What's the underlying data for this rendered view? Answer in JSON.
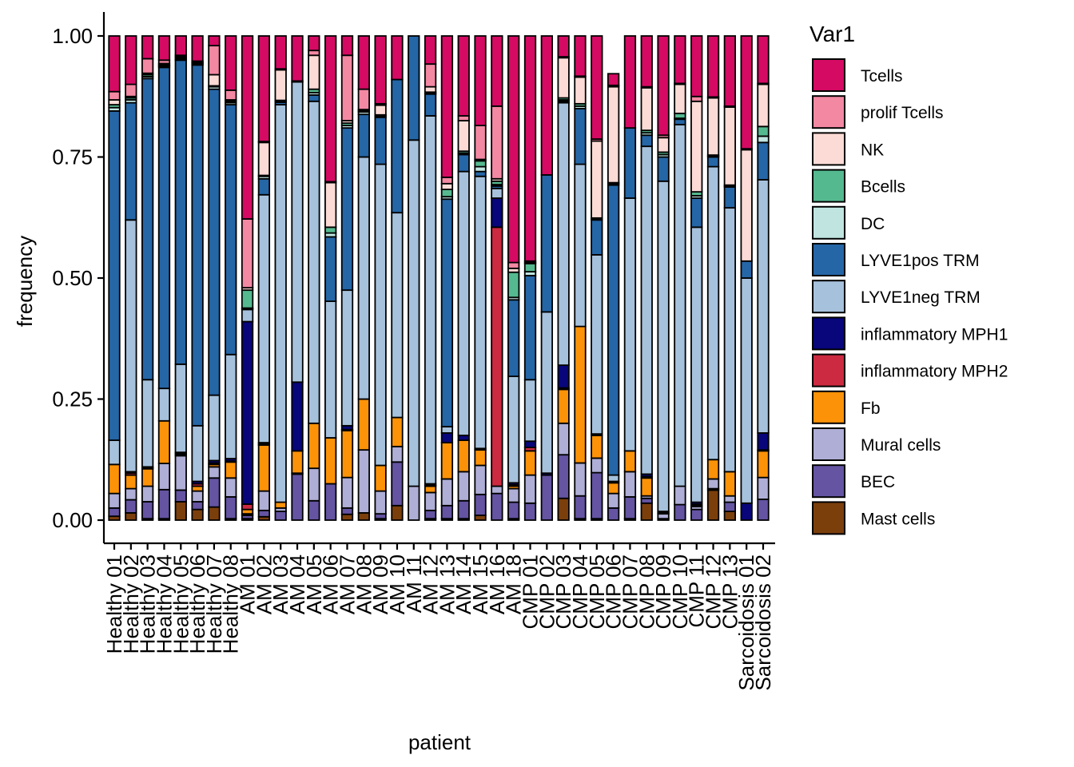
{
  "chart_data": {
    "type": "bar",
    "stacked": true,
    "title": "",
    "xlabel": "patient",
    "ylabel": "frequency",
    "ylim": [
      0,
      1
    ],
    "yticks": [
      "0.00",
      "0.25",
      "0.50",
      "0.75",
      "1.00"
    ],
    "legend": {
      "title": "Var1",
      "placement": "right",
      "entries": [
        "Tcells",
        "prolif Tcells",
        "NK",
        "Bcells",
        "DC",
        "LYVE1pos TRM",
        "LYVE1neg TRM",
        "inflammatory MPH1",
        "inflammatory MPH2",
        "Fb",
        "Mural cells",
        "BEC",
        "Mast cells"
      ]
    },
    "colors": {
      "Mast cells": "#7b3f0c",
      "BEC": "#6454a2",
      "Mural cells": "#aeaed6",
      "Fb": "#fb9208",
      "inflammatory MPH2": "#cb2a40",
      "inflammatory MPH1": "#08067a",
      "LYVE1neg TRM": "#a6c1dc",
      "LYVE1pos TRM": "#2566a6",
      "DC": "#c0e5e1",
      "Bcells": "#55b990",
      "NK": "#fcdbd6",
      "prolif Tcells": "#f388a3",
      "Tcells": "#d50a63"
    },
    "stack_order": [
      "Mast cells",
      "BEC",
      "Mural cells",
      "Fb",
      "inflammatory MPH2",
      "inflammatory MPH1",
      "LYVE1neg TRM",
      "LYVE1pos TRM",
      "DC",
      "Bcells",
      "NK",
      "prolif Tcells",
      "Tcells"
    ],
    "categories": [
      "Healthy 01",
      "Healthy 02",
      "Healthy 03",
      "Healthy 04",
      "Healthy 05",
      "Healthy 06",
      "Healthy 07",
      "Healthy 08",
      "AM 01",
      "AM 02",
      "AM 03",
      "AM 04",
      "AM 05",
      "AM 06",
      "AM 07",
      "AM 08",
      "AM 09",
      "AM 10",
      "AM 11",
      "AM 12",
      "AM 13",
      "AM 14",
      "AM 15",
      "AM 16",
      "AM 18",
      "CMP 01",
      "CMP 02",
      "CMP 03",
      "CMP 04",
      "CMP 05",
      "CMP 06",
      "CMP 07",
      "CMP 08",
      "CMP 09",
      "CMP 10",
      "CMP 11",
      "CMP 12",
      "CMP 13",
      "Sarcoidosis 01",
      "Sarcoidosis 02"
    ],
    "cumulative_tops": [
      {
        "Mast cells": 0.008,
        "BEC": 0.025,
        "Mural cells": 0.055,
        "Fb": 0.115,
        "inflammatory MPH2": 0.115,
        "inflammatory MPH1": 0.115,
        "LYVE1neg TRM": 0.165,
        "LYVE1pos TRM": 0.845,
        "DC": 0.852,
        "Bcells": 0.858,
        "NK": 0.868,
        "prolif Tcells": 0.885,
        "Tcells": 1.0
      },
      {
        "Mast cells": 0.015,
        "BEC": 0.042,
        "Mural cells": 0.065,
        "Fb": 0.093,
        "inflammatory MPH2": 0.097,
        "inflammatory MPH1": 0.1,
        "LYVE1neg TRM": 0.62,
        "LYVE1pos TRM": 0.862,
        "DC": 0.868,
        "Bcells": 0.872,
        "NK": 0.875,
        "prolif Tcells": 0.9,
        "Tcells": 1.0
      },
      {
        "Mast cells": 0.003,
        "BEC": 0.038,
        "Mural cells": 0.07,
        "Fb": 0.106,
        "inflammatory MPH2": 0.108,
        "inflammatory MPH1": 0.11,
        "LYVE1neg TRM": 0.29,
        "LYVE1pos TRM": 0.912,
        "DC": 0.916,
        "Bcells": 0.92,
        "NK": 0.923,
        "prolif Tcells": 0.953,
        "Tcells": 1.0
      },
      {
        "Mast cells": 0.003,
        "BEC": 0.063,
        "Mural cells": 0.117,
        "Fb": 0.205,
        "inflammatory MPH2": 0.205,
        "inflammatory MPH1": 0.205,
        "LYVE1neg TRM": 0.272,
        "LYVE1pos TRM": 0.935,
        "DC": 0.938,
        "Bcells": 0.94,
        "NK": 0.943,
        "prolif Tcells": 0.95,
        "Tcells": 1.0
      },
      {
        "Mast cells": 0.038,
        "BEC": 0.062,
        "Mural cells": 0.133,
        "Fb": 0.136,
        "inflammatory MPH2": 0.138,
        "inflammatory MPH1": 0.14,
        "LYVE1neg TRM": 0.322,
        "LYVE1pos TRM": 0.95,
        "DC": 0.952,
        "Bcells": 0.955,
        "NK": 0.957,
        "prolif Tcells": 0.96,
        "Tcells": 1.0
      },
      {
        "Mast cells": 0.022,
        "BEC": 0.038,
        "Mural cells": 0.06,
        "Fb": 0.07,
        "inflammatory MPH2": 0.075,
        "inflammatory MPH1": 0.08,
        "LYVE1neg TRM": 0.195,
        "LYVE1pos TRM": 0.94,
        "DC": 0.942,
        "Bcells": 0.944,
        "NK": 0.946,
        "prolif Tcells": 0.948,
        "Tcells": 1.0
      },
      {
        "Mast cells": 0.027,
        "BEC": 0.087,
        "Mural cells": 0.11,
        "Fb": 0.115,
        "inflammatory MPH2": 0.118,
        "inflammatory MPH1": 0.123,
        "LYVE1neg TRM": 0.258,
        "LYVE1pos TRM": 0.89,
        "DC": 0.895,
        "Bcells": 0.897,
        "NK": 0.92,
        "prolif Tcells": 0.98,
        "Tcells": 1.0
      },
      {
        "Mast cells": 0.003,
        "BEC": 0.048,
        "Mural cells": 0.087,
        "Fb": 0.12,
        "inflammatory MPH2": 0.122,
        "inflammatory MPH1": 0.127,
        "LYVE1neg TRM": 0.342,
        "LYVE1pos TRM": 0.858,
        "DC": 0.862,
        "Bcells": 0.865,
        "NK": 0.868,
        "prolif Tcells": 0.888,
        "Tcells": 1.0
      },
      {
        "Mast cells": 0.003,
        "BEC": 0.01,
        "Mural cells": 0.013,
        "Fb": 0.022,
        "inflammatory MPH2": 0.033,
        "inflammatory MPH1": 0.41,
        "LYVE1neg TRM": 0.435,
        "LYVE1pos TRM": 0.437,
        "DC": 0.438,
        "Bcells": 0.475,
        "NK": 0.48,
        "prolif Tcells": 0.622,
        "Tcells": 1.0
      },
      {
        "Mast cells": 0.007,
        "BEC": 0.02,
        "Mural cells": 0.06,
        "Fb": 0.155,
        "inflammatory MPH2": 0.157,
        "inflammatory MPH1": 0.16,
        "LYVE1neg TRM": 0.672,
        "LYVE1pos TRM": 0.705,
        "DC": 0.71,
        "Bcells": 0.712,
        "NK": 0.78,
        "prolif Tcells": 0.782,
        "Tcells": 1.0
      },
      {
        "Mast cells": 0.0,
        "BEC": 0.018,
        "Mural cells": 0.025,
        "Fb": 0.037,
        "inflammatory MPH2": 0.037,
        "inflammatory MPH1": 0.037,
        "LYVE1neg TRM": 0.858,
        "LYVE1pos TRM": 0.863,
        "DC": 0.865,
        "Bcells": 0.867,
        "NK": 0.93,
        "prolif Tcells": 0.932,
        "Tcells": 1.0
      },
      {
        "Mast cells": 0.0,
        "BEC": 0.095,
        "Mural cells": 0.097,
        "Fb": 0.143,
        "inflammatory MPH2": 0.143,
        "inflammatory MPH1": 0.285,
        "LYVE1neg TRM": 0.905,
        "LYVE1pos TRM": 0.905,
        "DC": 0.907,
        "Bcells": 0.907,
        "NK": 0.907,
        "prolif Tcells": 0.907,
        "Tcells": 1.0
      },
      {
        "Mast cells": 0.0,
        "BEC": 0.04,
        "Mural cells": 0.107,
        "Fb": 0.2,
        "inflammatory MPH2": 0.2,
        "inflammatory MPH1": 0.2,
        "LYVE1neg TRM": 0.865,
        "LYVE1pos TRM": 0.878,
        "DC": 0.883,
        "Bcells": 0.89,
        "NK": 0.96,
        "prolif Tcells": 0.97,
        "Tcells": 1.0
      },
      {
        "Mast cells": 0.0,
        "BEC": 0.075,
        "Mural cells": 0.075,
        "Fb": 0.17,
        "inflammatory MPH2": 0.17,
        "inflammatory MPH1": 0.17,
        "LYVE1neg TRM": 0.452,
        "LYVE1pos TRM": 0.585,
        "DC": 0.593,
        "Bcells": 0.605,
        "NK": 0.697,
        "prolif Tcells": 0.699,
        "Tcells": 1.0
      },
      {
        "Mast cells": 0.012,
        "BEC": 0.025,
        "Mural cells": 0.088,
        "Fb": 0.185,
        "inflammatory MPH2": 0.187,
        "inflammatory MPH1": 0.195,
        "LYVE1neg TRM": 0.475,
        "LYVE1pos TRM": 0.81,
        "DC": 0.815,
        "Bcells": 0.82,
        "NK": 0.825,
        "prolif Tcells": 0.96,
        "Tcells": 1.0
      },
      {
        "Mast cells": 0.015,
        "BEC": 0.015,
        "Mural cells": 0.145,
        "Fb": 0.25,
        "inflammatory MPH2": 0.25,
        "inflammatory MPH1": 0.25,
        "LYVE1neg TRM": 0.75,
        "LYVE1pos TRM": 0.838,
        "DC": 0.843,
        "Bcells": 0.845,
        "NK": 0.848,
        "prolif Tcells": 0.89,
        "Tcells": 1.0
      },
      {
        "Mast cells": 0.003,
        "BEC": 0.013,
        "Mural cells": 0.06,
        "Fb": 0.113,
        "inflammatory MPH2": 0.113,
        "inflammatory MPH1": 0.113,
        "LYVE1neg TRM": 0.735,
        "LYVE1pos TRM": 0.832,
        "DC": 0.835,
        "Bcells": 0.837,
        "NK": 0.857,
        "prolif Tcells": 0.86,
        "Tcells": 1.0
      },
      {
        "Mast cells": 0.03,
        "BEC": 0.12,
        "Mural cells": 0.152,
        "Fb": 0.212,
        "inflammatory MPH2": 0.212,
        "inflammatory MPH1": 0.212,
        "LYVE1neg TRM": 0.635,
        "LYVE1pos TRM": 0.91,
        "DC": 0.91,
        "Bcells": 0.91,
        "NK": 0.91,
        "prolif Tcells": 0.91,
        "Tcells": 1.0
      },
      {
        "Mast cells": 0.0,
        "BEC": 0.0,
        "Mural cells": 0.07,
        "Fb": 0.07,
        "inflammatory MPH2": 0.07,
        "inflammatory MPH1": 0.07,
        "LYVE1neg TRM": 0.785,
        "LYVE1pos TRM": 1.0,
        "DC": 1.0,
        "Bcells": 1.0,
        "NK": 1.0,
        "prolif Tcells": 1.0,
        "Tcells": 1.0
      },
      {
        "Mast cells": 0.003,
        "BEC": 0.02,
        "Mural cells": 0.057,
        "Fb": 0.07,
        "inflammatory MPH2": 0.072,
        "inflammatory MPH1": 0.075,
        "LYVE1neg TRM": 0.835,
        "LYVE1pos TRM": 0.88,
        "DC": 0.882,
        "Bcells": 0.884,
        "NK": 0.895,
        "prolif Tcells": 0.942,
        "Tcells": 1.0
      },
      {
        "Mast cells": 0.003,
        "BEC": 0.03,
        "Mural cells": 0.085,
        "Fb": 0.16,
        "inflammatory MPH2": 0.16,
        "inflammatory MPH1": 0.18,
        "LYVE1neg TRM": 0.193,
        "LYVE1pos TRM": 0.663,
        "DC": 0.668,
        "Bcells": 0.683,
        "NK": 0.695,
        "prolif Tcells": 0.708,
        "Tcells": 1.0
      },
      {
        "Mast cells": 0.003,
        "BEC": 0.04,
        "Mural cells": 0.1,
        "Fb": 0.165,
        "inflammatory MPH2": 0.165,
        "inflammatory MPH1": 0.175,
        "LYVE1neg TRM": 0.72,
        "LYVE1pos TRM": 0.755,
        "DC": 0.758,
        "Bcells": 0.762,
        "NK": 0.825,
        "prolif Tcells": 0.835,
        "Tcells": 1.0
      },
      {
        "Mast cells": 0.01,
        "BEC": 0.053,
        "Mural cells": 0.113,
        "Fb": 0.145,
        "inflammatory MPH2": 0.145,
        "inflammatory MPH1": 0.148,
        "LYVE1neg TRM": 0.71,
        "LYVE1pos TRM": 0.72,
        "DC": 0.73,
        "Bcells": 0.742,
        "NK": 0.745,
        "prolif Tcells": 0.815,
        "Tcells": 1.0
      },
      {
        "Mast cells": 0.0,
        "BEC": 0.055,
        "Mural cells": 0.07,
        "Fb": 0.07,
        "inflammatory MPH2": 0.605,
        "inflammatory MPH1": 0.665,
        "LYVE1neg TRM": 0.685,
        "LYVE1pos TRM": 0.69,
        "DC": 0.693,
        "Bcells": 0.7,
        "NK": 0.705,
        "prolif Tcells": 0.855,
        "Tcells": 1.0
      },
      {
        "Mast cells": 0.003,
        "BEC": 0.037,
        "Mural cells": 0.065,
        "Fb": 0.07,
        "inflammatory MPH2": 0.073,
        "inflammatory MPH1": 0.077,
        "LYVE1neg TRM": 0.297,
        "LYVE1pos TRM": 0.455,
        "DC": 0.46,
        "Bcells": 0.512,
        "NK": 0.52,
        "prolif Tcells": 0.532,
        "Tcells": 1.0
      },
      {
        "Mast cells": 0.0,
        "BEC": 0.035,
        "Mural cells": 0.093,
        "Fb": 0.143,
        "inflammatory MPH2": 0.15,
        "inflammatory MPH1": 0.163,
        "LYVE1neg TRM": 0.29,
        "LYVE1pos TRM": 0.505,
        "DC": 0.513,
        "Bcells": 0.53,
        "NK": 0.532,
        "prolif Tcells": 0.535,
        "Tcells": 1.0
      },
      {
        "Mast cells": 0.0,
        "BEC": 0.093,
        "Mural cells": 0.093,
        "Fb": 0.093,
        "inflammatory MPH2": 0.093,
        "inflammatory MPH1": 0.097,
        "LYVE1neg TRM": 0.43,
        "LYVE1pos TRM": 0.713,
        "DC": 0.713,
        "Bcells": 0.713,
        "NK": 0.713,
        "prolif Tcells": 0.713,
        "Tcells": 1.0
      },
      {
        "Mast cells": 0.045,
        "BEC": 0.135,
        "Mural cells": 0.2,
        "Fb": 0.27,
        "inflammatory MPH2": 0.273,
        "inflammatory MPH1": 0.32,
        "LYVE1neg TRM": 0.862,
        "LYVE1pos TRM": 0.865,
        "DC": 0.868,
        "Bcells": 0.872,
        "NK": 0.955,
        "prolif Tcells": 0.957,
        "Tcells": 1.0
      },
      {
        "Mast cells": 0.003,
        "BEC": 0.05,
        "Mural cells": 0.118,
        "Fb": 0.4,
        "inflammatory MPH2": 0.4,
        "inflammatory MPH1": 0.4,
        "LYVE1neg TRM": 0.735,
        "LYVE1pos TRM": 0.85,
        "DC": 0.855,
        "Bcells": 0.86,
        "NK": 0.915,
        "prolif Tcells": 0.917,
        "Tcells": 1.0
      },
      {
        "Mast cells": 0.003,
        "BEC": 0.098,
        "Mural cells": 0.128,
        "Fb": 0.175,
        "inflammatory MPH2": 0.175,
        "inflammatory MPH1": 0.178,
        "LYVE1neg TRM": 0.548,
        "LYVE1pos TRM": 0.62,
        "DC": 0.622,
        "Bcells": 0.624,
        "NK": 0.783,
        "prolif Tcells": 0.787,
        "Tcells": 1.0
      },
      {
        "Mast cells": 0.0,
        "BEC": 0.025,
        "Mural cells": 0.055,
        "Fb": 0.077,
        "inflammatory MPH2": 0.077,
        "inflammatory MPH1": 0.08,
        "LYVE1neg TRM": 0.093,
        "LYVE1pos TRM": 0.692,
        "DC": 0.695,
        "Bcells": 0.697,
        "NK": 0.895,
        "prolif Tcells": 0.898,
        "Tcells": 0.922
      },
      {
        "Mast cells": 0.003,
        "BEC": 0.048,
        "Mural cells": 0.1,
        "Fb": 0.143,
        "inflammatory MPH2": 0.143,
        "inflammatory MPH1": 0.143,
        "LYVE1neg TRM": 0.665,
        "LYVE1pos TRM": 0.81,
        "DC": 0.81,
        "Bcells": 0.81,
        "NK": 0.81,
        "prolif Tcells": 0.81,
        "Tcells": 1.0
      },
      {
        "Mast cells": 0.035,
        "BEC": 0.045,
        "Mural cells": 0.05,
        "Fb": 0.087,
        "inflammatory MPH2": 0.09,
        "inflammatory MPH1": 0.095,
        "LYVE1neg TRM": 0.772,
        "LYVE1pos TRM": 0.795,
        "DC": 0.8,
        "Bcells": 0.805,
        "NK": 0.893,
        "prolif Tcells": 0.895,
        "Tcells": 1.0
      },
      {
        "Mast cells": 0.0,
        "BEC": 0.003,
        "Mural cells": 0.013,
        "Fb": 0.015,
        "inflammatory MPH2": 0.015,
        "inflammatory MPH1": 0.018,
        "LYVE1neg TRM": 0.7,
        "LYVE1pos TRM": 0.75,
        "DC": 0.755,
        "Bcells": 0.76,
        "NK": 0.79,
        "prolif Tcells": 0.795,
        "Tcells": 1.0
      },
      {
        "Mast cells": 0.0,
        "BEC": 0.032,
        "Mural cells": 0.07,
        "Fb": 0.07,
        "inflammatory MPH2": 0.07,
        "inflammatory MPH1": 0.07,
        "LYVE1neg TRM": 0.817,
        "LYVE1pos TRM": 0.828,
        "DC": 0.83,
        "Bcells": 0.84,
        "NK": 0.9,
        "prolif Tcells": 0.902,
        "Tcells": 1.0
      },
      {
        "Mast cells": 0.0,
        "BEC": 0.022,
        "Mural cells": 0.028,
        "Fb": 0.03,
        "inflammatory MPH2": 0.033,
        "inflammatory MPH1": 0.037,
        "LYVE1neg TRM": 0.605,
        "LYVE1pos TRM": 0.665,
        "DC": 0.67,
        "Bcells": 0.678,
        "NK": 0.865,
        "prolif Tcells": 0.875,
        "Tcells": 1.0
      },
      {
        "Mast cells": 0.062,
        "BEC": 0.065,
        "Mural cells": 0.085,
        "Fb": 0.125,
        "inflammatory MPH2": 0.125,
        "inflammatory MPH1": 0.125,
        "LYVE1neg TRM": 0.73,
        "LYVE1pos TRM": 0.75,
        "DC": 0.752,
        "Bcells": 0.754,
        "NK": 0.872,
        "prolif Tcells": 0.874,
        "Tcells": 1.0
      },
      {
        "Mast cells": 0.018,
        "BEC": 0.037,
        "Mural cells": 0.05,
        "Fb": 0.1,
        "inflammatory MPH2": 0.1,
        "inflammatory MPH1": 0.1,
        "LYVE1neg TRM": 0.645,
        "LYVE1pos TRM": 0.688,
        "DC": 0.69,
        "Bcells": 0.692,
        "NK": 0.853,
        "prolif Tcells": 0.855,
        "Tcells": 1.0
      },
      {
        "Mast cells": 0.0,
        "BEC": 0.0,
        "Mural cells": 0.0,
        "Fb": 0.0,
        "inflammatory MPH2": 0.0,
        "inflammatory MPH1": 0.035,
        "LYVE1neg TRM": 0.5,
        "LYVE1pos TRM": 0.535,
        "DC": 0.535,
        "Bcells": 0.535,
        "NK": 0.765,
        "prolif Tcells": 0.767,
        "Tcells": 1.0
      },
      {
        "Mast cells": 0.0,
        "BEC": 0.043,
        "Mural cells": 0.088,
        "Fb": 0.143,
        "inflammatory MPH2": 0.145,
        "inflammatory MPH1": 0.18,
        "LYVE1neg TRM": 0.703,
        "LYVE1pos TRM": 0.78,
        "DC": 0.793,
        "Bcells": 0.813,
        "NK": 0.9,
        "prolif Tcells": 0.902,
        "Tcells": 1.0
      }
    ]
  }
}
